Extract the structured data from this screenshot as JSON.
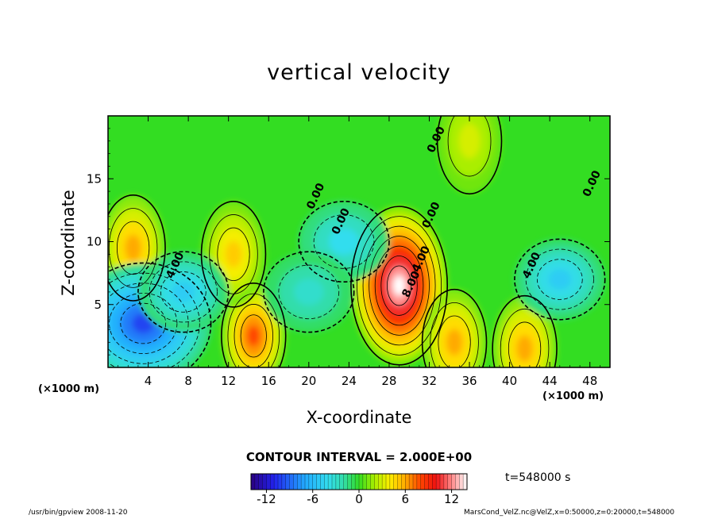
{
  "chart_data": {
    "type": "heatmap",
    "title": "vertical velocity",
    "xlabel": "X-coordinate",
    "ylabel": "Z-coordinate",
    "x_unit": "(×1000 m)",
    "x_ticks": [
      4,
      8,
      12,
      16,
      20,
      24,
      28,
      32,
      36,
      40,
      44,
      48
    ],
    "y_ticks": [
      5,
      10,
      15
    ],
    "xlim": [
      0,
      50
    ],
    "ylim": [
      0,
      20
    ],
    "colorbar_ticks": [
      -12,
      -6,
      0,
      6,
      12
    ],
    "colorbar_range": [
      -14,
      14
    ],
    "contour_interval_label": "CONTOUR INTERVAL = 2.000E+00",
    "contour_labels": [
      {
        "text": "4.00",
        "x": 7,
        "z": 8
      },
      {
        "text": "0.00",
        "x": 23.5,
        "z": 11.5
      },
      {
        "text": "0.00",
        "x": 21,
        "z": 13.5
      },
      {
        "text": "0.00",
        "x": 32.5,
        "z": 12
      },
      {
        "text": "0.00",
        "x": 33,
        "z": 18
      },
      {
        "text": "4.00",
        "x": 31.5,
        "z": 8.5
      },
      {
        "text": "8.00",
        "x": 30.5,
        "z": 6.5
      },
      {
        "text": "4.00",
        "x": 42.5,
        "z": 8
      },
      {
        "text": "0.00",
        "x": 48.5,
        "z": 14.5
      }
    ],
    "features": [
      {
        "kind": "updraft",
        "x": 29,
        "z": 6.5,
        "peak": 14
      },
      {
        "kind": "updraft",
        "x": 14.5,
        "z": 2.5,
        "peak": 8
      },
      {
        "kind": "updraft",
        "x": 2.5,
        "z": 9.5,
        "peak": 6
      },
      {
        "kind": "updraft",
        "x": 34.5,
        "z": 2,
        "peak": 6
      },
      {
        "kind": "updraft",
        "x": 41.5,
        "z": 1.5,
        "peak": 6
      },
      {
        "kind": "updraft",
        "x": 12.5,
        "z": 9,
        "peak": 5
      },
      {
        "kind": "updraft",
        "x": 36,
        "z": 18,
        "peak": 3
      },
      {
        "kind": "downdraft",
        "x": 3.5,
        "z": 3.5,
        "peak": -10
      },
      {
        "kind": "downdraft",
        "x": 7.5,
        "z": 6,
        "peak": -5
      },
      {
        "kind": "downdraft",
        "x": 45,
        "z": 7,
        "peak": -5
      },
      {
        "kind": "downdraft",
        "x": 23.5,
        "z": 10,
        "peak": -4
      },
      {
        "kind": "downdraft",
        "x": 20,
        "z": 6,
        "peak": -3
      }
    ]
  },
  "time_label": "t=548000 s",
  "footer_left": "/usr/bin/gpview   2008-11-20",
  "footer_right": "MarsCond_VelZ.nc@VelZ,x=0:50000,z=0:20000,t=548000"
}
